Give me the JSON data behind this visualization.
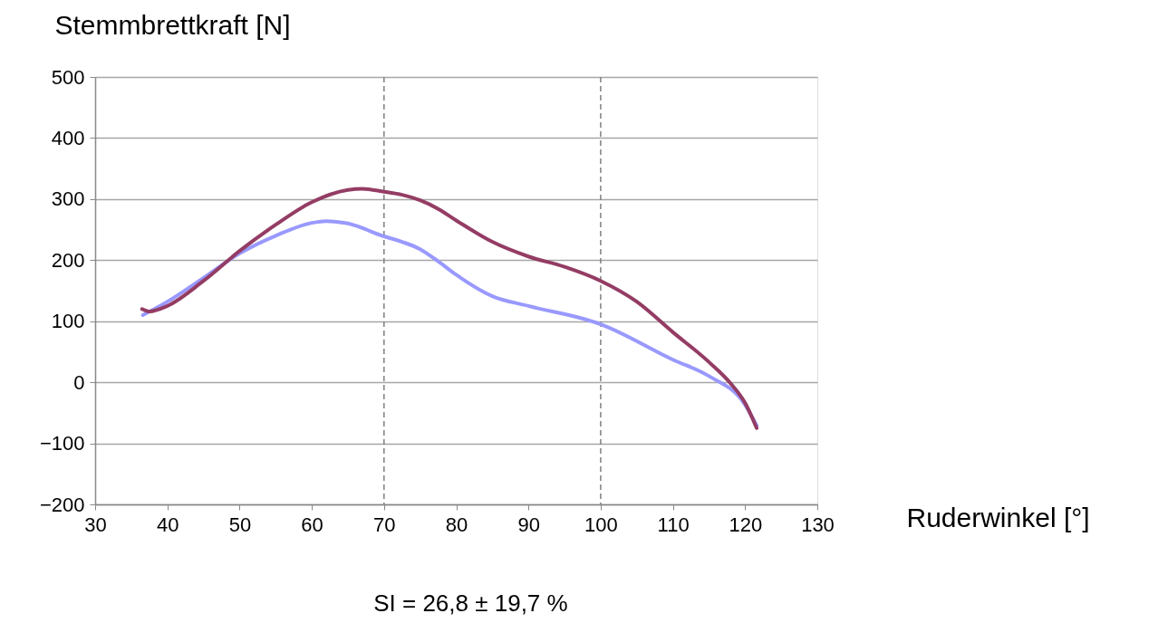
{
  "chart_data": {
    "type": "line",
    "xlabel": "Ruderwinkel [°]",
    "ylabel": "Stemmbrettkraft [N]",
    "xlim": [
      30,
      130
    ],
    "xticks": [
      30,
      40,
      50,
      60,
      70,
      80,
      90,
      100,
      110,
      120,
      130
    ],
    "ylim": [
      -200,
      500
    ],
    "yticks": [
      -200,
      -100,
      0,
      100,
      200,
      300,
      400,
      500
    ],
    "grid": "y",
    "legend": false,
    "marker": "none",
    "line_style": "solid",
    "ref_lines": [
      {
        "axis": "x",
        "value": 70,
        "color": "#808080",
        "line_style": "dashed"
      },
      {
        "axis": "x",
        "value": 100,
        "color": "#808080",
        "line_style": "dashed"
      }
    ],
    "annotations": [
      "SI = 26,8 ± 19,7 %"
    ],
    "series": [
      {
        "color": "#9999ff",
        "x": [
          36.6,
          40,
          45,
          50,
          55,
          60,
          62,
          65,
          70,
          72.5,
          75,
          77.5,
          80,
          85,
          90,
          100,
          110,
          115,
          120,
          121.6
        ],
        "values": [
          110,
          132,
          171,
          211,
          240,
          261,
          264,
          260,
          239,
          230,
          218,
          198,
          176,
          141,
          125,
          95,
          37,
          10,
          -37,
          -71
        ]
      },
      {
        "color": "#943c64",
        "x": [
          36.5,
          37.5,
          40,
          45,
          50,
          55,
          60,
          65,
          67,
          70,
          72.5,
          75,
          77.5,
          80,
          85,
          90,
          95,
          100,
          105,
          110,
          115,
          118,
          120,
          121.6
        ],
        "values": [
          120,
          116,
          125,
          166,
          215,
          258,
          295,
          315,
          317,
          312,
          307,
          298,
          284,
          265,
          230,
          206,
          189,
          166,
          132,
          82,
          33,
          -2,
          -34,
          -75
        ]
      }
    ]
  }
}
